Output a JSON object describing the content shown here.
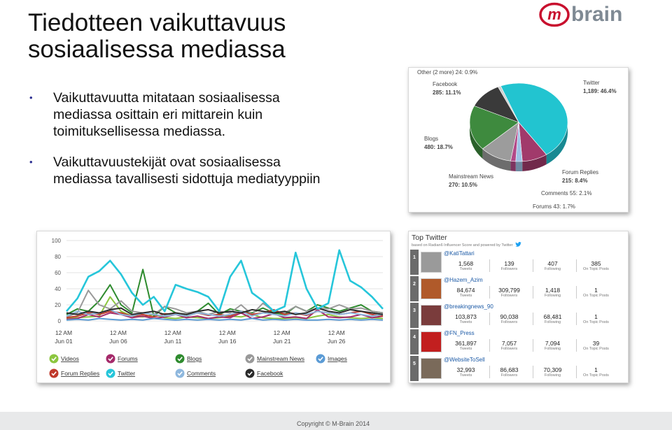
{
  "slide": {
    "title_line1": "Tiedotteen vaikuttavuus",
    "title_line2": "sosiaalisessa mediassa",
    "bullets": [
      "Vaikuttavuutta mitataan sosiaalisessa mediassa osittain eri mittarein kuin toimituksellisessa mediassa.",
      "Vaikuttavuustekijät ovat sosiaalisessa mediassa tavallisesti sidottuja mediatyyppiin"
    ],
    "bullet_glyph": "•",
    "footer": "Copyright © M-Brain 2014"
  },
  "logo": {
    "text": "mbrain",
    "circle_letter": "m",
    "colors": {
      "red": "#c8102e",
      "grey": "#7f8a94"
    }
  },
  "chart_data": [
    {
      "type": "pie",
      "labels": [
        "Twitter",
        "Forum Replies",
        "Comments",
        "Forums",
        "Mainstream News",
        "Blogs",
        "Facebook",
        "Other (2 more)"
      ],
      "values": [
        1189,
        215,
        55,
        43,
        270,
        480,
        285,
        24
      ],
      "percents": [
        46.4,
        8.4,
        2.1,
        1.7,
        10.5,
        18.7,
        11.1,
        0.9
      ],
      "label_text": [
        [
          "Twitter",
          "1,189: 46.4%"
        ],
        [
          "Forum Replies",
          "215: 8.4%"
        ],
        [
          "Comments 55: 2.1%"
        ],
        [
          "Forums 43: 1.7%"
        ],
        [
          "Mainstream News",
          "270: 10.5%"
        ],
        [
          "Blogs",
          "480: 18.7%"
        ],
        [
          "Facebook",
          "285: 11.1%"
        ],
        [
          "Other (2 more) 24: 0.9%"
        ]
      ],
      "colors": [
        "#22c4d0",
        "#a13a6b",
        "#9fc3e6",
        "#b24a88",
        "#9c9c9c",
        "#3e8a3e",
        "#3a3a3a",
        "#cfcfcf"
      ]
    },
    {
      "type": "line",
      "ylim": [
        0,
        100
      ],
      "yticks": [
        "100",
        "80",
        "60",
        "40",
        "20",
        "0"
      ],
      "xticks": [
        [
          "12 AM",
          "Jun 01"
        ],
        [
          "12 AM",
          "Jun 06"
        ],
        [
          "12 AM",
          "Jun 11"
        ],
        [
          "12 AM",
          "Jun 16"
        ],
        [
          "12 AM",
          "Jun 21"
        ],
        [
          "12 AM",
          "Jun 26"
        ]
      ],
      "x": [
        1,
        2,
        3,
        4,
        5,
        6,
        7,
        8,
        9,
        10,
        11,
        12,
        13,
        14,
        15,
        16,
        17,
        18,
        19,
        20,
        21,
        22,
        23,
        24,
        25,
        26,
        27,
        28,
        29,
        30
      ],
      "series": [
        {
          "name": "Videos",
          "color": "#8cc63f",
          "values": [
            3,
            4,
            5,
            6,
            30,
            12,
            6,
            5,
            8,
            4,
            3,
            5,
            4,
            3,
            4,
            6,
            5,
            8,
            4,
            3,
            3,
            4,
            3,
            6,
            8,
            5,
            4,
            3,
            4,
            3
          ]
        },
        {
          "name": "Forums",
          "color": "#a52a6a",
          "values": [
            2,
            3,
            8,
            5,
            10,
            8,
            4,
            6,
            3,
            5,
            8,
            4,
            6,
            3,
            5,
            4,
            10,
            3,
            5,
            9,
            4,
            5,
            3,
            14,
            5,
            4,
            5,
            8,
            4,
            6
          ]
        },
        {
          "name": "Blogs",
          "color": "#2e8b2e",
          "values": [
            8,
            15,
            12,
            25,
            45,
            20,
            10,
            64,
            6,
            18,
            10,
            8,
            12,
            22,
            8,
            15,
            12,
            10,
            16,
            10,
            8,
            18,
            12,
            20,
            16,
            12,
            16,
            20,
            12,
            10
          ]
        },
        {
          "name": "Mainstream News",
          "color": "#999999",
          "values": [
            5,
            10,
            38,
            20,
            15,
            25,
            12,
            10,
            8,
            18,
            15,
            10,
            12,
            8,
            12,
            10,
            20,
            8,
            22,
            12,
            10,
            18,
            12,
            16,
            15,
            20,
            15,
            16,
            12,
            10
          ]
        },
        {
          "name": "Images",
          "color": "#5b9bd5",
          "values": [
            1,
            2,
            1,
            3,
            2,
            1,
            2,
            1,
            3,
            2,
            1,
            2,
            1,
            2,
            1,
            2,
            1,
            3,
            1,
            2,
            1,
            2,
            1,
            1,
            2,
            1,
            2,
            1,
            2,
            1
          ]
        },
        {
          "name": "Forum Replies",
          "color": "#c0392b",
          "values": [
            4,
            6,
            10,
            8,
            12,
            10,
            6,
            8,
            5,
            9,
            8,
            6,
            10,
            7,
            8,
            6,
            12,
            8,
            10,
            14,
            8,
            10,
            7,
            12,
            10,
            8,
            10,
            12,
            8,
            6
          ]
        },
        {
          "name": "Twitter",
          "color": "#26c6da",
          "values": [
            12,
            28,
            55,
            62,
            75,
            58,
            35,
            20,
            30,
            12,
            45,
            40,
            36,
            30,
            12,
            55,
            75,
            35,
            25,
            12,
            18,
            85,
            40,
            15,
            22,
            88,
            50,
            42,
            30,
            15
          ]
        },
        {
          "name": "Comments",
          "color": "#8fb8de",
          "values": [
            6,
            12,
            8,
            10,
            14,
            8,
            6,
            10,
            8,
            6,
            8,
            6,
            10,
            8,
            6,
            8,
            12,
            6,
            10,
            8,
            6,
            10,
            8,
            12,
            10,
            8,
            10,
            8,
            6,
            8
          ]
        },
        {
          "name": "Facebook",
          "color": "#2b2b2b",
          "values": [
            10,
            8,
            12,
            10,
            14,
            16,
            8,
            10,
            12,
            8,
            10,
            8,
            12,
            14,
            10,
            12,
            10,
            14,
            12,
            10,
            12,
            8,
            10,
            16,
            12,
            10,
            14,
            12,
            10,
            8
          ]
        }
      ]
    }
  ],
  "twitter": {
    "title": "Top Twitter",
    "subtitle": "based on Radian6 Influencer Score and powered by Twitter",
    "labels": {
      "tweets": "Tweets",
      "followers": "Followers",
      "following": "Following",
      "on_topic": "On Topic Posts"
    },
    "rows": [
      {
        "rank": "1",
        "handle": "@KatiTattari",
        "tweets": "1,568",
        "followers": "139",
        "following": "407",
        "on_topic": "385"
      },
      {
        "rank": "2",
        "handle": "@Hazem_Azim",
        "tweets": "84,674",
        "followers": "309,799",
        "following": "1,418",
        "on_topic": "1"
      },
      {
        "rank": "3",
        "handle": "@breakingnews_90",
        "tweets": "103,873",
        "followers": "90,038",
        "following": "68,481",
        "on_topic": "1"
      },
      {
        "rank": "4",
        "handle": "@FN_Press",
        "tweets": "361,897",
        "followers": "7,057",
        "following": "7,094",
        "on_topic": "39"
      },
      {
        "rank": "5",
        "handle": "@WebsiteToSell",
        "tweets": "32,993",
        "followers": "86,683",
        "following": "70,309",
        "on_topic": "1"
      }
    ],
    "avatar_colors": [
      "#9a9a9a",
      "#b05a2a",
      "#7a3c3c",
      "#c21f1f",
      "#7a6a5a"
    ],
    "bird_icon": "twitter-bird-icon"
  }
}
